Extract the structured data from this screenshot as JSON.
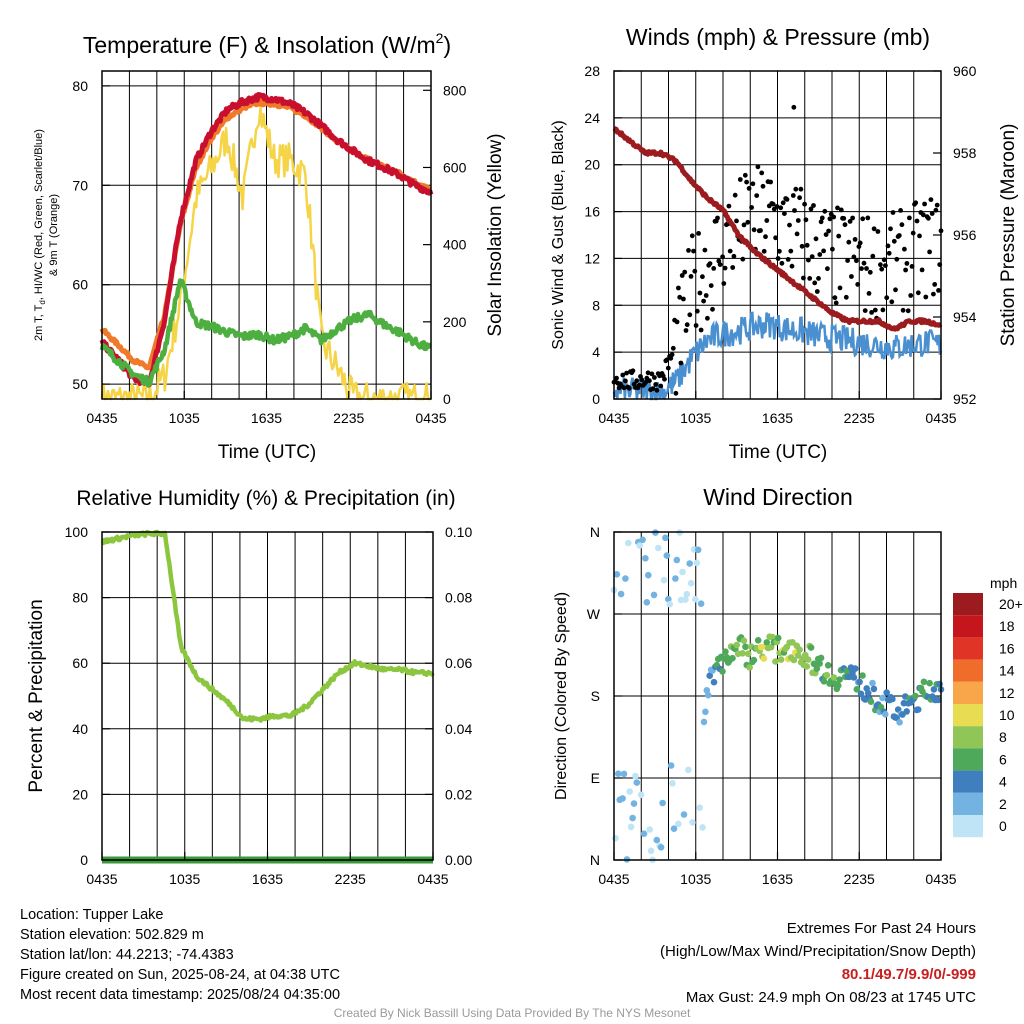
{
  "charts": {
    "temp": {
      "title_main": "Temperature (F) & Insolation (W/m",
      "title_sup": "2",
      "title_close": ")",
      "xlabel": "Time (UTC)",
      "ylabel_line1": "2m T, T",
      "ylabel_sub": "d",
      "ylabel_line1_rest": ", HI/WC (Red, Green, Scarlet/Blue)",
      "ylabel_line2": "& 9m T (Orange)",
      "ylabel_right": "Solar Insolation (Yellow)",
      "xticks": [
        "0435",
        "1035",
        "1635",
        "2235",
        "0435"
      ],
      "yticks_left": [
        "50",
        "60",
        "70",
        "80"
      ],
      "yticks_right": [
        "0",
        "200",
        "400",
        "600",
        "800"
      ]
    },
    "wind": {
      "title": "Winds (mph) & Pressure (mb)",
      "xlabel": "Time (UTC)",
      "ylabel": "Sonic Wind & Gust (Blue, Black)",
      "ylabel_right": "Station Pressure (Maroon)",
      "xticks": [
        "0435",
        "1035",
        "1635",
        "2235",
        "0435"
      ],
      "yticks_left": [
        "0",
        "4",
        "8",
        "12",
        "16",
        "20",
        "24",
        "28"
      ],
      "yticks_right": [
        "952",
        "954",
        "956",
        "958",
        "960"
      ]
    },
    "rh": {
      "title": "Relative Humidity (%) & Precipitation (in)",
      "ylabel": "Percent & Precipitation",
      "xticks": [
        "0435",
        "1035",
        "1635",
        "2235",
        "0435"
      ],
      "yticks_left": [
        "0",
        "20",
        "40",
        "60",
        "80",
        "100"
      ],
      "yticks_right": [
        "0.00",
        "0.02",
        "0.04",
        "0.06",
        "0.08",
        "0.10"
      ]
    },
    "dir": {
      "title": "Wind Direction",
      "ylabel": "Direction (Colored By Speed)",
      "xticks": [
        "0435",
        "1035",
        "1635",
        "2235",
        "0435"
      ],
      "yticks_left": [
        "N",
        "E",
        "S",
        "W",
        "N"
      ],
      "legend_title": "mph",
      "legend_labels": [
        "20+",
        "18",
        "16",
        "14",
        "12",
        "10",
        "8",
        "6",
        "4",
        "2",
        "0"
      ],
      "legend_colors": [
        "#9b1b1e",
        "#c4161c",
        "#e03526",
        "#f06c2a",
        "#f9a64a",
        "#e8dc52",
        "#8fc657",
        "#4fa95a",
        "#3f7fbd",
        "#73b3e2",
        "#bfe4f6"
      ]
    }
  },
  "chart_data": [
    {
      "type": "line",
      "title": "Temperature (F) & Insolation (W/m2)",
      "xlabel": "Time (UTC)",
      "ylabel": "2m T, Td, HI/WC (Red, Green, Scarlet/Blue) & 9m T (Orange)",
      "ylabel_right": "Solar Insolation (Yellow)",
      "x": [
        "0435",
        "0635",
        "0835",
        "1035",
        "1135",
        "1235",
        "1335",
        "1435",
        "1535",
        "1635",
        "1735",
        "1835",
        "1935",
        "2035",
        "2135",
        "2235",
        "2335",
        "0035",
        "0135",
        "0235",
        "0335",
        "0435"
      ],
      "ylim": [
        48.5,
        81.5
      ],
      "ylim_right": [
        0,
        850
      ],
      "series": [
        {
          "color": "#c8102e",
          "axis": "left",
          "values": [
            54.2,
            52.5,
            50.6,
            50.0,
            56.5,
            66.5,
            72.5,
            75.5,
            77.6,
            78.4,
            78.9,
            78.7,
            78.2,
            77.3,
            76.0,
            74.6,
            73.5,
            72.5,
            71.8,
            71.0,
            70.0,
            69.3
          ]
        },
        {
          "color": "#f07a2a",
          "axis": "left",
          "values": [
            55.5,
            54.0,
            52.4,
            51.6,
            57.0,
            66.0,
            71.8,
            74.8,
            76.8,
            77.8,
            78.3,
            78.2,
            77.8,
            77.0,
            75.8,
            74.4,
            73.4,
            72.6,
            71.9,
            71.2,
            70.3,
            69.5
          ]
        },
        {
          "color": "#4caf3f",
          "axis": "left",
          "values": [
            53.8,
            52.4,
            51.0,
            50.2,
            53.5,
            60.5,
            56.2,
            55.8,
            55.2,
            54.8,
            55.0,
            54.4,
            54.8,
            55.6,
            54.4,
            55.6,
            56.5,
            57.0,
            56.0,
            55.2,
            54.2,
            53.5
          ]
        },
        {
          "color": "#f5d547",
          "axis": "right",
          "values": [
            0,
            0,
            0,
            0,
            60,
            250,
            520,
            600,
            680,
            520,
            760,
            620,
            620,
            580,
            150,
            80,
            5,
            0,
            0,
            0,
            0,
            0
          ]
        }
      ]
    },
    {
      "type": "line",
      "title": "Winds (mph) & Pressure (mb)",
      "xlabel": "Time (UTC)",
      "ylabel": "Sonic Wind & Gust (Blue, Black)",
      "ylabel_right": "Station Pressure (Maroon)",
      "x": [
        "0435",
        "0635",
        "0835",
        "1035",
        "1135",
        "1235",
        "1335",
        "1435",
        "1535",
        "1635",
        "1735",
        "1835",
        "1935",
        "2035",
        "2135",
        "2235",
        "2335",
        "0035",
        "0135",
        "0235",
        "0335",
        "0435"
      ],
      "ylim": [
        0,
        28
      ],
      "ylim_right": [
        952,
        960
      ],
      "series": [
        {
          "color": "#4a90d0",
          "axis": "left",
          "values": [
            0.8,
            0.6,
            0.8,
            0.5,
            1.5,
            3.5,
            5.0,
            5.6,
            5.8,
            6.2,
            6.4,
            6.0,
            5.8,
            5.4,
            5.2,
            5.0,
            4.8,
            4.6,
            4.4,
            4.6,
            4.8,
            4.6
          ]
        },
        {
          "color": "#000000",
          "axis": "left",
          "values": [
            1.8,
            1.5,
            1.7,
            1.6,
            4.5,
            9.5,
            11.0,
            13.5,
            14.5,
            15.5,
            15.5,
            14.5,
            14.0,
            13.0,
            12.0,
            12.0,
            11.5,
            11.0,
            11.5,
            12.0,
            13.0,
            13.0
          ]
        },
        {
          "color": "#9b1b1e",
          "axis": "right",
          "values": [
            958.6,
            958.3,
            958.0,
            958.0,
            957.8,
            957.3,
            956.9,
            956.6,
            956.0,
            955.6,
            955.3,
            955.0,
            954.7,
            954.4,
            954.1,
            953.9,
            953.9,
            953.9,
            953.7,
            953.9,
            953.9,
            953.8
          ]
        }
      ]
    },
    {
      "type": "line",
      "title": "Relative Humidity (%) & Precipitation (in)",
      "ylabel": "Percent & Precipitation",
      "x": [
        "0435",
        "0635",
        "0835",
        "1035",
        "1135",
        "1235",
        "1335",
        "1435",
        "1535",
        "1635",
        "1735",
        "1835",
        "1935",
        "2035",
        "2135",
        "2235",
        "2335",
        "0035",
        "0135",
        "0235",
        "0335",
        "0435"
      ],
      "ylim": [
        0,
        100
      ],
      "ylim_right": [
        0,
        0.1
      ],
      "series": [
        {
          "color": "#8cc63f",
          "axis": "left",
          "values": [
            97,
            98,
            99,
            99.5,
            99.5,
            65,
            56,
            52,
            48,
            43,
            43,
            44,
            44,
            47,
            52,
            57,
            60,
            59,
            58,
            58,
            57,
            57
          ]
        },
        {
          "color": "#3a9a3a",
          "axis": "right",
          "values": [
            0,
            0,
            0,
            0,
            0,
            0,
            0,
            0,
            0,
            0,
            0,
            0,
            0,
            0,
            0,
            0,
            0,
            0,
            0,
            0,
            0,
            0
          ]
        }
      ]
    },
    {
      "type": "scatter",
      "title": "Wind Direction",
      "ylabel": "Direction (Colored By Speed)",
      "x": [
        "0435",
        "0535",
        "0635",
        "0735",
        "0835",
        "0935",
        "1035",
        "1135",
        "1235",
        "1335",
        "1435",
        "1535",
        "1635",
        "1735",
        "1835",
        "1935",
        "2035",
        "2135",
        "2235",
        "2335",
        "0035",
        "0135",
        "0235",
        "0335",
        "0435"
      ],
      "ylim": [
        0,
        360
      ],
      "series": [
        {
          "name": "direction (deg)",
          "values": [
            60,
            330,
            80,
            40,
            340,
            60,
            90,
            200,
            220,
            235,
            225,
            235,
            230,
            235,
            225,
            215,
            200,
            205,
            195,
            180,
            170,
            160,
            175,
            185,
            190
          ]
        },
        {
          "name": "speed (mph)",
          "values": [
            1,
            1,
            1,
            1,
            1,
            1,
            1,
            3,
            5,
            7,
            7,
            8,
            7,
            9,
            7,
            6,
            6,
            5,
            4,
            4,
            4,
            4,
            5,
            5,
            4
          ]
        }
      ],
      "legend_title": "mph"
    }
  ],
  "info": {
    "location": "Location: Tupper Lake",
    "elevation": "Station elevation: 502.829 m",
    "latlon": "Station lat/lon: 44.2213; -74.4383",
    "created": "Figure created on Sun, 2025-08-24, at 04:38 UTC",
    "recent": "Most recent data timestamp: 2025/08/24 04:35:00"
  },
  "extremes": {
    "heading": "Extremes For Past 24 Hours",
    "legend": "(High/Low/Max Wind/Precipitation/Snow Depth)",
    "values": "80.1/49.7/9.9/0/-999",
    "max_gust": "Max Gust: 24.9 mph On 08/23 at 1745 UTC"
  },
  "credit": "Created By Nick Bassill Using Data Provided By The NYS Mesonet"
}
